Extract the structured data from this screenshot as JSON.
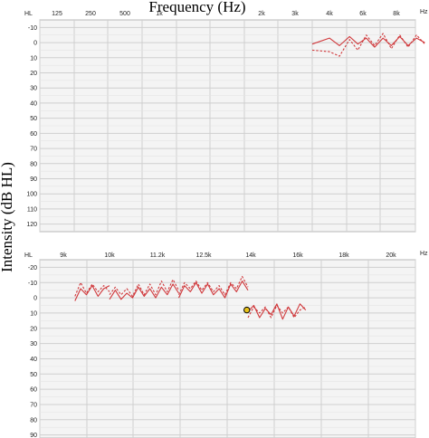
{
  "figure": {
    "title": "Frequency (Hz)",
    "ylabel": "Intensity (dB HL)",
    "colors": {
      "series": "#d0383b",
      "marker_fill": "#e8c21a",
      "grid": "#cfcfcf",
      "plot_bg": "#f4f4f4",
      "frame": "#b9b9b9"
    }
  },
  "chart_data": [
    {
      "type": "line",
      "title": "Frequency (Hz)",
      "xlabel": "",
      "ylabel": "Intensity (dB HL)",
      "corner_left": "HL",
      "corner_right": "Hz",
      "x_ticks": [
        "125",
        "250",
        "500",
        "1k",
        "2k",
        "3k",
        "4k",
        "6k",
        "8k"
      ],
      "y_ticks": [
        "-10",
        "0",
        "10",
        "20",
        "30",
        "40",
        "50",
        "60",
        "70",
        "80",
        "90",
        "100",
        "110",
        "120"
      ],
      "ylim": [
        -15,
        125
      ],
      "y_inverted": true,
      "grid": true,
      "series": [
        {
          "style": "solid",
          "segments": [
            {
              "x": [
                5.5,
                6.0,
                6.3,
                6.6,
                6.85,
                7.1,
                7.35,
                7.6,
                7.85,
                8.1,
                8.35,
                8.6,
                8.85
              ],
              "y": [
                1,
                -3,
                2,
                -4,
                1,
                -3,
                3,
                -3,
                2,
                -4,
                2,
                -3,
                0
              ]
            }
          ]
        },
        {
          "style": "dashed",
          "segments": [
            {
              "x": [
                5.5,
                6.0,
                6.3,
                6.6,
                6.85,
                7.1,
                7.35,
                7.6,
                7.85,
                8.1,
                8.35,
                8.6,
                8.85
              ],
              "y": [
                5,
                6,
                9,
                -2,
                5,
                -5,
                2,
                -6,
                4,
                -5,
                3,
                -5,
                1
              ]
            }
          ]
        }
      ],
      "markers": []
    },
    {
      "type": "line",
      "corner_left": "HL",
      "corner_right": "Hz",
      "x_ticks": [
        "9k",
        "10k",
        "11.2k",
        "12.5k",
        "14k",
        "16k",
        "18k",
        "20k"
      ],
      "y_ticks": [
        "-20",
        "-10",
        "0",
        "10",
        "20",
        "30",
        "40",
        "50",
        "60",
        "70",
        "80",
        "90"
      ],
      "ylim": [
        -25,
        92
      ],
      "y_inverted": true,
      "grid": true,
      "series": [
        {
          "style": "solid",
          "segments": [
            {
              "x": [
                0.5,
                0.75,
                1.0,
                1.25,
                1.5,
                1.75,
                2.0
              ],
              "y": [
                2,
                -6,
                -2,
                -8,
                -1,
                -6,
                -8
              ]
            },
            {
              "x": [
                2.0,
                2.25,
                2.5,
                2.75,
                3.0,
                3.25,
                3.5,
                3.75,
                4.0,
                4.25,
                4.5,
                4.75,
                5.0
              ],
              "y": [
                1,
                -5,
                1,
                -3,
                0,
                -7,
                -1,
                -6,
                0,
                -7,
                -2,
                -9,
                -3
              ]
            },
            {
              "x": [
                5.0,
                5.25,
                5.5,
                5.75,
                6.0,
                6.25,
                6.5,
                6.75,
                7.0,
                7.25,
                7.5,
                7.75,
                8.0
              ],
              "y": [
                0,
                -8,
                -4,
                -10,
                -3,
                -9,
                -2,
                -6,
                0,
                -9,
                -4,
                -11,
                -5
              ]
            },
            {
              "x": [
                8.0,
                8.25,
                8.5,
                8.75,
                9.0,
                9.25,
                9.5,
                9.75,
                10.0,
                10.25,
                10.5
              ],
              "y": [
                9,
                5,
                13,
                7,
                11,
                4,
                14,
                6,
                12,
                4,
                8
              ]
            }
          ]
        },
        {
          "style": "dashed",
          "segments": [
            {
              "x": [
                0.5,
                0.75,
                1.0,
                1.25,
                1.5,
                1.75,
                2.0
              ],
              "y": [
                -1,
                -10,
                -3,
                -9,
                -4,
                -8,
                -4
              ]
            },
            {
              "x": [
                2.0,
                2.25,
                2.5,
                2.75,
                3.0,
                3.25,
                3.5,
                3.75,
                4.0,
                4.25,
                4.5,
                4.75,
                5.0
              ],
              "y": [
                -2,
                -7,
                -2,
                -6,
                -1,
                -9,
                -2,
                -9,
                -2,
                -11,
                -4,
                -12,
                -5
              ]
            },
            {
              "x": [
                5.0,
                5.25,
                5.5,
                5.75,
                6.0,
                6.25,
                6.5,
                6.75,
                7.0,
                7.25,
                7.5,
                7.75,
                8.0
              ],
              "y": [
                -2,
                -10,
                -6,
                -11,
                -5,
                -10,
                -4,
                -8,
                -2,
                -10,
                -6,
                -14,
                -7
              ]
            },
            {
              "x": [
                8.0,
                8.25,
                8.5,
                8.75,
                9.0,
                9.25,
                9.5,
                9.75,
                10.0,
                10.25,
                10.5
              ],
              "y": [
                13,
                6,
                10,
                6,
                13,
                5,
                10,
                6,
                13,
                8,
                6
              ]
            }
          ]
        }
      ],
      "markers": [
        {
          "x": 7.95,
          "y": 8
        }
      ]
    }
  ]
}
